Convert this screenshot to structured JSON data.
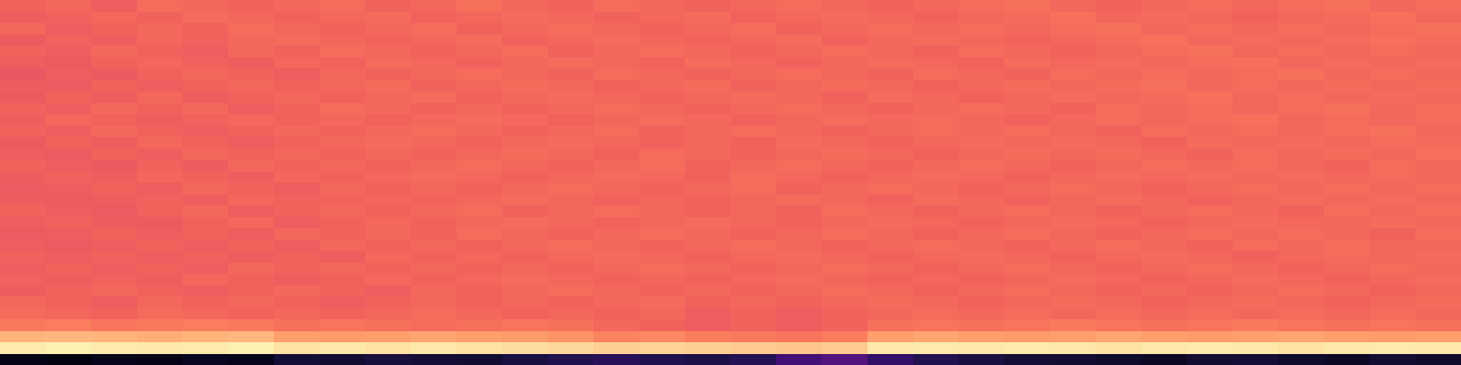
{
  "chart_data": {
    "type": "heatmap",
    "color": "magma",
    "tick_labels": false,
    "color_range": [
      0,
      100
    ],
    "cells": [
      [
        67,
        68,
        66,
        69,
        68,
        67,
        68,
        69,
        67,
        68,
        70,
        68,
        67,
        69,
        68,
        67,
        68,
        69,
        68,
        67,
        68,
        69,
        70,
        68,
        67,
        68,
        69,
        68,
        69,
        70,
        68,
        69
      ],
      [
        66,
        67,
        68,
        67,
        69,
        68,
        67,
        68,
        69,
        67,
        68,
        69,
        68,
        67,
        68,
        69,
        67,
        68,
        69,
        68,
        67,
        68,
        69,
        70,
        68,
        69,
        68,
        67,
        68,
        69,
        70,
        68
      ],
      [
        68,
        66,
        67,
        68,
        67,
        69,
        68,
        67,
        68,
        69,
        67,
        68,
        69,
        68,
        67,
        68,
        69,
        67,
        68,
        69,
        68,
        69,
        68,
        69,
        70,
        68,
        69,
        68,
        69,
        68,
        69,
        70
      ],
      [
        65,
        67,
        66,
        68,
        67,
        68,
        69,
        68,
        67,
        68,
        69,
        67,
        68,
        69,
        68,
        67,
        68,
        69,
        67,
        68,
        69,
        68,
        67,
        68,
        69,
        70,
        68,
        69,
        68,
        69,
        70,
        69
      ],
      [
        67,
        66,
        68,
        67,
        66,
        68,
        67,
        69,
        68,
        67,
        68,
        69,
        67,
        68,
        69,
        68,
        67,
        68,
        69,
        68,
        67,
        69,
        68,
        67,
        68,
        69,
        70,
        68,
        69,
        68,
        69,
        68
      ],
      [
        66,
        65,
        67,
        68,
        67,
        66,
        68,
        67,
        69,
        68,
        67,
        68,
        69,
        68,
        67,
        69,
        68,
        67,
        68,
        69,
        68,
        67,
        69,
        68,
        69,
        68,
        69,
        70,
        68,
        69,
        68,
        69
      ],
      [
        64,
        66,
        65,
        67,
        68,
        67,
        66,
        68,
        67,
        68,
        69,
        68,
        67,
        69,
        68,
        67,
        68,
        69,
        68,
        67,
        69,
        68,
        67,
        69,
        68,
        69,
        68,
        69,
        70,
        68,
        69,
        68
      ],
      [
        66,
        65,
        67,
        66,
        67,
        68,
        67,
        68,
        69,
        67,
        68,
        69,
        68,
        67,
        68,
        69,
        67,
        68,
        69,
        68,
        67,
        68,
        69,
        68,
        69,
        70,
        68,
        69,
        68,
        69,
        68,
        69
      ],
      [
        65,
        67,
        66,
        68,
        66,
        67,
        68,
        67,
        68,
        69,
        67,
        68,
        69,
        68,
        67,
        68,
        69,
        68,
        67,
        69,
        68,
        67,
        68,
        69,
        68,
        69,
        70,
        68,
        69,
        68,
        69,
        68
      ],
      [
        67,
        66,
        68,
        67,
        68,
        66,
        67,
        69,
        68,
        67,
        68,
        67,
        68,
        69,
        68,
        67,
        68,
        69,
        68,
        67,
        68,
        69,
        68,
        67,
        69,
        68,
        69,
        68,
        69,
        70,
        68,
        69
      ],
      [
        66,
        68,
        67,
        66,
        67,
        68,
        67,
        68,
        67,
        68,
        69,
        68,
        67,
        68,
        69,
        68,
        67,
        68,
        69,
        68,
        69,
        68,
        67,
        68,
        69,
        68,
        69,
        70,
        68,
        69,
        68,
        69
      ],
      [
        67,
        66,
        68,
        67,
        66,
        67,
        68,
        67,
        68,
        69,
        68,
        67,
        68,
        69,
        67,
        68,
        69,
        68,
        67,
        68,
        69,
        68,
        69,
        68,
        67,
        69,
        68,
        69,
        68,
        69,
        70,
        68
      ],
      [
        65,
        67,
        66,
        68,
        67,
        66,
        67,
        68,
        69,
        68,
        67,
        68,
        69,
        68,
        67,
        68,
        67,
        69,
        68,
        67,
        68,
        69,
        68,
        69,
        68,
        67,
        69,
        68,
        69,
        68,
        69,
        69
      ],
      [
        66,
        65,
        67,
        66,
        68,
        67,
        68,
        67,
        68,
        67,
        68,
        69,
        68,
        67,
        69,
        68,
        67,
        68,
        69,
        68,
        67,
        68,
        69,
        68,
        69,
        68,
        67,
        69,
        68,
        69,
        68,
        70
      ],
      [
        67,
        66,
        65,
        67,
        66,
        68,
        67,
        68,
        67,
        68,
        69,
        68,
        67,
        68,
        69,
        67,
        68,
        69,
        68,
        67,
        68,
        69,
        68,
        67,
        68,
        69,
        68,
        69,
        68,
        67,
        69,
        68
      ],
      [
        66,
        67,
        66,
        68,
        67,
        66,
        68,
        67,
        68,
        69,
        68,
        67,
        68,
        69,
        68,
        67,
        69,
        68,
        67,
        68,
        69,
        68,
        67,
        68,
        69,
        68,
        69,
        68,
        69,
        68,
        69,
        68
      ],
      [
        65,
        66,
        67,
        66,
        68,
        67,
        66,
        68,
        67,
        68,
        67,
        68,
        69,
        68,
        67,
        68,
        69,
        67,
        68,
        69,
        68,
        67,
        68,
        69,
        68,
        67,
        68,
        69,
        68,
        69,
        68,
        69
      ],
      [
        66,
        65,
        66,
        67,
        66,
        68,
        67,
        67,
        68,
        67,
        68,
        69,
        68,
        67,
        68,
        67,
        68,
        69,
        68,
        67,
        69,
        68,
        67,
        68,
        69,
        68,
        67,
        68,
        69,
        68,
        69,
        68
      ],
      [
        67,
        66,
        65,
        67,
        68,
        66,
        67,
        68,
        67,
        68,
        69,
        67,
        68,
        69,
        68,
        67,
        68,
        67,
        69,
        68,
        67,
        68,
        69,
        68,
        67,
        68,
        69,
        68,
        67,
        69,
        68,
        69
      ],
      [
        66,
        67,
        66,
        65,
        67,
        68,
        66,
        67,
        68,
        67,
        68,
        69,
        68,
        67,
        68,
        69,
        68,
        67,
        68,
        69,
        68,
        67,
        68,
        69,
        68,
        67,
        68,
        69,
        68,
        68,
        69,
        68
      ],
      [
        65,
        66,
        67,
        66,
        67,
        66,
        68,
        67,
        68,
        67,
        69,
        68,
        67,
        68,
        69,
        68,
        67,
        68,
        69,
        68,
        67,
        68,
        69,
        68,
        67,
        68,
        69,
        68,
        69,
        68,
        67,
        69
      ],
      [
        66,
        65,
        66,
        67,
        66,
        67,
        66,
        68,
        67,
        68,
        67,
        68,
        69,
        68,
        67,
        68,
        69,
        68,
        67,
        68,
        69,
        68,
        67,
        68,
        69,
        68,
        67,
        69,
        68,
        69,
        68,
        68
      ],
      [
        67,
        66,
        67,
        66,
        67,
        66,
        67,
        66,
        68,
        67,
        68,
        67,
        68,
        69,
        68,
        67,
        68,
        69,
        68,
        67,
        68,
        69,
        68,
        67,
        68,
        69,
        68,
        67,
        68,
        69,
        68,
        69
      ],
      [
        66,
        67,
        66,
        67,
        66,
        68,
        67,
        68,
        67,
        68,
        67,
        68,
        67,
        68,
        69,
        68,
        67,
        68,
        69,
        68,
        67,
        68,
        69,
        68,
        67,
        68,
        69,
        68,
        67,
        68,
        69,
        68
      ],
      [
        67,
        66,
        67,
        66,
        68,
        67,
        66,
        67,
        68,
        67,
        68,
        69,
        68,
        67,
        68,
        67,
        68,
        69,
        68,
        67,
        68,
        67,
        68,
        69,
        68,
        67,
        68,
        69,
        68,
        67,
        68,
        69
      ],
      [
        66,
        67,
        68,
        67,
        66,
        67,
        68,
        67,
        66,
        68,
        67,
        68,
        69,
        68,
        67,
        68,
        67,
        68,
        69,
        68,
        67,
        68,
        69,
        68,
        67,
        68,
        67,
        68,
        69,
        68,
        67,
        68
      ],
      [
        68,
        67,
        66,
        68,
        67,
        68,
        67,
        66,
        67,
        68,
        67,
        68,
        67,
        68,
        69,
        67,
        68,
        67,
        68,
        69,
        68,
        67,
        68,
        69,
        68,
        67,
        68,
        69,
        68,
        67,
        68,
        69
      ],
      [
        69,
        68,
        67,
        69,
        68,
        67,
        68,
        67,
        68,
        69,
        68,
        67,
        68,
        67,
        68,
        66,
        67,
        66,
        67,
        68,
        69,
        68,
        69,
        68,
        69,
        68,
        69,
        68,
        69,
        68,
        69,
        68
      ],
      [
        72,
        73,
        71,
        72,
        73,
        72,
        70,
        71,
        70,
        69,
        70,
        71,
        70,
        68,
        67,
        66,
        67,
        66,
        67,
        70,
        71,
        70,
        71,
        72,
        71,
        70,
        71,
        72,
        71,
        70,
        71,
        70
      ],
      [
        84,
        85,
        84,
        83,
        84,
        85,
        80,
        79,
        80,
        81,
        80,
        79,
        77,
        74,
        75,
        73,
        72,
        71,
        73,
        80,
        81,
        80,
        79,
        80,
        81,
        80,
        79,
        80,
        81,
        80,
        79,
        80
      ],
      [
        96,
        97,
        96,
        95,
        96,
        97,
        94,
        95,
        94,
        95,
        94,
        93,
        92,
        90,
        91,
        90,
        89,
        88,
        89,
        95,
        96,
        95,
        96,
        95,
        94,
        95,
        96,
        95,
        94,
        95,
        96,
        95
      ],
      [
        4,
        3,
        5,
        4,
        6,
        5,
        10,
        9,
        11,
        10,
        9,
        12,
        14,
        16,
        14,
        13,
        15,
        22,
        26,
        18,
        14,
        12,
        10,
        9,
        8,
        7,
        9,
        10,
        8,
        7,
        9,
        8
      ]
    ]
  }
}
